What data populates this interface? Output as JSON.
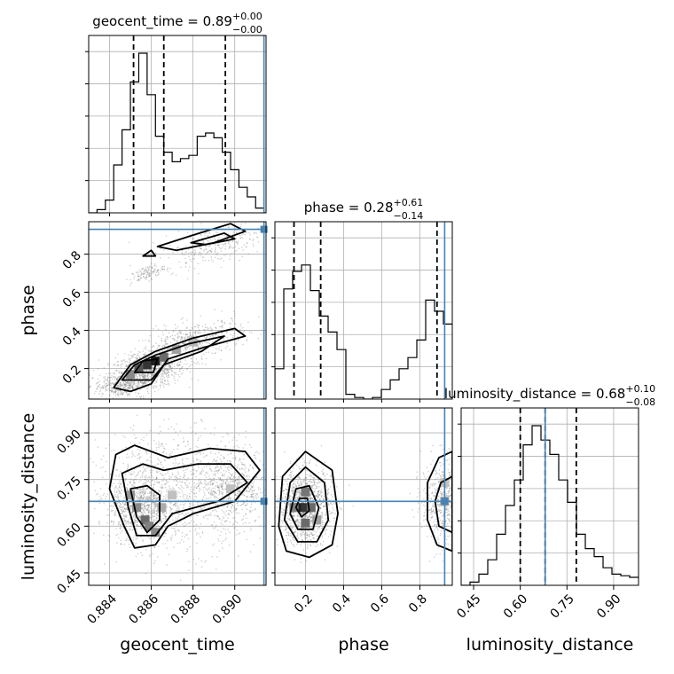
{
  "chart_data": {
    "type": "corner",
    "params": [
      "geocent_time",
      "phase",
      "luminosity_distance"
    ],
    "axis_labels": {
      "geocent_time": "geocent_time",
      "phase": "phase",
      "luminosity_distance": "luminosity_distance"
    },
    "titles": {
      "geocent_time": {
        "prefix": "geocent_time = ",
        "median": "0.89",
        "plus": "+0.00",
        "minus": "−0.00"
      },
      "phase": {
        "prefix": "phase = ",
        "median": "0.28",
        "plus": "+0.61",
        "minus": "−0.14"
      },
      "luminosity_distance": {
        "prefix": "luminosity_distance = ",
        "median": "0.68",
        "plus": "+0.10",
        "minus": "−0.08"
      }
    },
    "ranges": {
      "geocent_time": [
        0.883,
        0.8915
      ],
      "phase": [
        0.04,
        0.97
      ],
      "luminosity_distance": [
        0.41,
        0.98
      ]
    },
    "ticks": {
      "geocent_time": [
        {
          "v": 0.884,
          "label": "0.884"
        },
        {
          "v": 0.886,
          "label": "0.886"
        },
        {
          "v": 0.888,
          "label": "0.888"
        },
        {
          "v": 0.89,
          "label": "0.890"
        }
      ],
      "phase": [
        {
          "v": 0.2,
          "label": "0.2"
        },
        {
          "v": 0.4,
          "label": "0.4"
        },
        {
          "v": 0.6,
          "label": "0.6"
        },
        {
          "v": 0.8,
          "label": "0.8"
        }
      ],
      "luminosity_distance": [
        {
          "v": 0.45,
          "label": "0.45"
        },
        {
          "v": 0.6,
          "label": "0.60"
        },
        {
          "v": 0.75,
          "label": "0.75"
        },
        {
          "v": 0.9,
          "label": "0.90"
        }
      ]
    },
    "truths": {
      "geocent_time": 0.8914,
      "phase": 0.93,
      "luminosity_distance": 0.68
    },
    "quantiles": {
      "geocent_time": [
        0.88515,
        0.8866,
        0.88955
      ],
      "phase": [
        0.14,
        0.28,
        0.89
      ],
      "luminosity_distance": [
        0.6,
        0.68,
        0.78
      ]
    },
    "histograms": {
      "geocent_time": {
        "bin_width": 0.0004,
        "edges_start": 0.883,
        "values": [
          0,
          0.02,
          0.08,
          0.3,
          0.52,
          0.82,
          1.0,
          0.74,
          0.48,
          0.38,
          0.32,
          0.34,
          0.36,
          0.48,
          0.5,
          0.47,
          0.38,
          0.27,
          0.16,
          0.1,
          0.03,
          0
        ]
      },
      "phase": {
        "bin_width": 0.0465,
        "edges_start": 0.04,
        "values": [
          0.19,
          0.69,
          0.8,
          0.84,
          0.68,
          0.52,
          0.42,
          0.31,
          0.03,
          0.01,
          0.0,
          0.01,
          0.06,
          0.12,
          0.19,
          0.26,
          0.37,
          0.62,
          0.55,
          0.47
        ]
      },
      "luminosity_distance": {
        "bin_width": 0.0285,
        "edges_start": 0.41,
        "values": [
          0.0,
          0.02,
          0.07,
          0.16,
          0.32,
          0.5,
          0.66,
          0.88,
          1.0,
          0.91,
          0.82,
          0.66,
          0.52,
          0.32,
          0.23,
          0.18,
          0.11,
          0.07,
          0.06,
          0.05
        ]
      }
    },
    "grid": true,
    "legend": "none"
  }
}
